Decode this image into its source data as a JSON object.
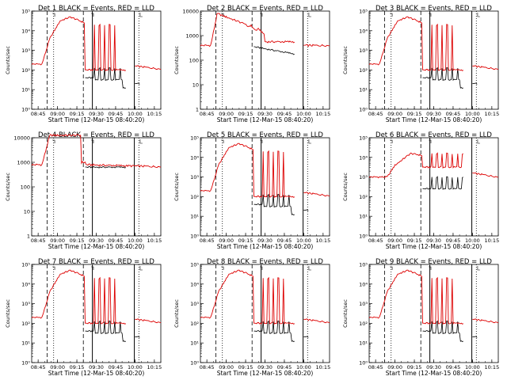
{
  "colors": {
    "events": "#000000",
    "lld": "#dd0000",
    "axis": "#000000",
    "background": "#ffffff"
  },
  "x_ticks": [
    "08:45",
    "09:00",
    "09:15",
    "09:30",
    "09:45",
    "10:00",
    "10:15"
  ],
  "x_axis_label": "Start Time (12-Mar-15 08:40:20)",
  "y_axis_label": "Counts/sec",
  "chart_data": [
    {
      "type": "line",
      "title": "Det 1  BLACK = Events, RED = LLD",
      "y_scale": "log",
      "yticks": [
        "10⁰",
        "10¹",
        "10²",
        "10³",
        "10⁴",
        "10⁵"
      ],
      "ylim": [
        1,
        100000
      ],
      "xlim": [
        "08:40",
        "10:20"
      ],
      "x": [
        "08:40",
        "10:20"
      ],
      "series": [
        {
          "name": "Events"
        },
        {
          "name": "LLD"
        }
      ],
      "shape": "a"
    },
    {
      "type": "line",
      "title": "Det 2  BLACK = Events, RED = LLD",
      "y_scale": "log",
      "yticks": [
        "1",
        "10",
        "100",
        "1000",
        "10000"
      ],
      "ylim": [
        1,
        10000
      ],
      "xlim": [
        "08:40",
        "10:20"
      ],
      "x": [
        "08:40",
        "10:20"
      ],
      "series": [
        {
          "name": "Events"
        },
        {
          "name": "LLD"
        }
      ],
      "shape": "b"
    },
    {
      "type": "line",
      "title": "Det 3  BLACK = Events, RED = LLD",
      "y_scale": "log",
      "yticks": [
        "10⁰",
        "10¹",
        "10²",
        "10³",
        "10⁴",
        "10⁵"
      ],
      "ylim": [
        1,
        100000
      ],
      "xlim": [
        "08:40",
        "10:20"
      ],
      "x": [
        "08:40",
        "10:20"
      ],
      "series": [
        {
          "name": "Events"
        },
        {
          "name": "LLD"
        }
      ],
      "shape": "a"
    },
    {
      "type": "line",
      "title": "Det 4  BLACK = Events, RED = LLD",
      "y_scale": "log",
      "yticks": [
        "1",
        "10",
        "100",
        "1000",
        "10000"
      ],
      "ylim": [
        1,
        10000
      ],
      "xlim": [
        "08:40",
        "10:20"
      ],
      "x": [
        "08:40",
        "10:20"
      ],
      "series": [
        {
          "name": "Events"
        },
        {
          "name": "LLD"
        }
      ],
      "shape": "c"
    },
    {
      "type": "line",
      "title": "Det 5  BLACK = Events, RED = LLD",
      "y_scale": "log",
      "yticks": [
        "10⁰",
        "10¹",
        "10²",
        "10³",
        "10⁴",
        "10⁵"
      ],
      "ylim": [
        1,
        100000
      ],
      "xlim": [
        "08:40",
        "10:20"
      ],
      "x": [
        "08:40",
        "10:20"
      ],
      "series": [
        {
          "name": "Events"
        },
        {
          "name": "LLD"
        }
      ],
      "shape": "a"
    },
    {
      "type": "line",
      "title": "Det 6  BLACK = Events, RED = LLD",
      "y_scale": "log",
      "yticks": [
        "10⁰",
        "10¹",
        "10²",
        "10³",
        "10⁴",
        "10⁵"
      ],
      "ylim": [
        1,
        100000
      ],
      "xlim": [
        "08:40",
        "10:20"
      ],
      "x": [
        "08:40",
        "10:20"
      ],
      "series": [
        {
          "name": "Events"
        },
        {
          "name": "LLD"
        }
      ],
      "shape": "d"
    },
    {
      "type": "line",
      "title": "Det 7  BLACK = Events, RED = LLD",
      "y_scale": "log",
      "yticks": [
        "10⁰",
        "10¹",
        "10²",
        "10³",
        "10⁴",
        "10⁵"
      ],
      "ylim": [
        1,
        100000
      ],
      "xlim": [
        "08:40",
        "10:20"
      ],
      "x": [
        "08:40",
        "10:20"
      ],
      "series": [
        {
          "name": "Events"
        },
        {
          "name": "LLD"
        }
      ],
      "shape": "a"
    },
    {
      "type": "line",
      "title": "Det 8  BLACK = Events, RED = LLD",
      "y_scale": "log",
      "yticks": [
        "10⁰",
        "10¹",
        "10²",
        "10³",
        "10⁴",
        "10⁵"
      ],
      "ylim": [
        1,
        100000
      ],
      "xlim": [
        "08:40",
        "10:20"
      ],
      "x": [
        "08:40",
        "10:20"
      ],
      "series": [
        {
          "name": "Events"
        },
        {
          "name": "LLD"
        }
      ],
      "shape": "a"
    },
    {
      "type": "line",
      "title": "Det 9  BLACK = Events, RED = LLD",
      "y_scale": "log",
      "yticks": [
        "10⁰",
        "10¹",
        "10²",
        "10³",
        "10⁴",
        "10⁵"
      ],
      "ylim": [
        1,
        100000
      ],
      "xlim": [
        "08:40",
        "10:20"
      ],
      "x": [
        "08:40",
        "10:20"
      ],
      "series": [
        {
          "name": "Events"
        },
        {
          "name": "LLD"
        }
      ],
      "shape": "a"
    }
  ]
}
